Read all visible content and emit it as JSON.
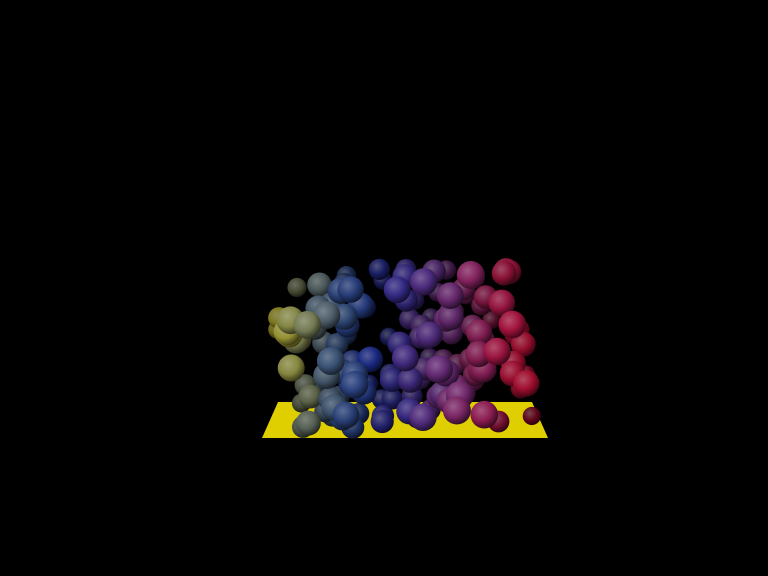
{
  "scene": {
    "background_color": "#000000",
    "floor_color": "#e0cf00",
    "sphere_count": 150,
    "gradient_colors": [
      "#b7ad1f",
      "#5f6b63",
      "#2f4a78",
      "#1a2a8c",
      "#3a2a88",
      "#5a2a78",
      "#7a2462",
      "#9a1545",
      "#b00c2c"
    ]
  }
}
